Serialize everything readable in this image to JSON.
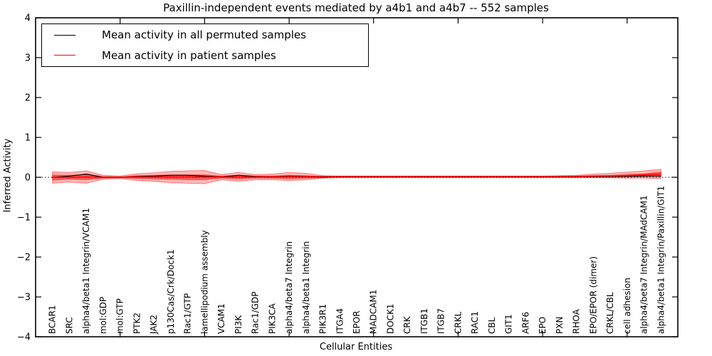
{
  "title": "Paxillin-independent events mediated by a4b1 and a4b7 -- 552 samples",
  "legend": {
    "entries": [
      {
        "label": "Mean activity in all permuted samples",
        "color": "#000000"
      },
      {
        "label": "Mean activity in patient samples",
        "color": "#ff0000"
      }
    ],
    "position": "upper left"
  },
  "colors": {
    "permuted_line": "#000000",
    "patient_line": "#ff0000",
    "band_fill": "#ff0000",
    "band_outer_opacity": 0.28,
    "band_inner_opacity": 0.5,
    "axis": "#000000",
    "zero_line": "#000000"
  },
  "chart_data": {
    "type": "line",
    "title": "Paxillin-independent events mediated by a4b1 and a4b7 -- 552 samples",
    "xlabel": "Cellular Entities",
    "ylabel": "Inferred Activity",
    "xlim": [
      0,
      38
    ],
    "ylim": [
      -4,
      4
    ],
    "grid": false,
    "legend_position": "upper left",
    "yticks": [
      {
        "value": 4,
        "label": "4"
      },
      {
        "value": 3,
        "label": "3"
      },
      {
        "value": 2,
        "label": "2"
      },
      {
        "value": 1,
        "label": "1"
      },
      {
        "value": 0,
        "label": "0"
      },
      {
        "value": -1,
        "label": "−1"
      },
      {
        "value": -2,
        "label": "−2"
      },
      {
        "value": -3,
        "label": "−3"
      },
      {
        "value": -4,
        "label": "−4"
      }
    ],
    "xticks_major": [
      5,
      10,
      15,
      20,
      25,
      30,
      35
    ],
    "zero_line": {
      "value": 0,
      "style": "dotted",
      "color": "#000000"
    },
    "categories": [
      "BCAR1",
      "SRC",
      "alpha4/beta1 Integrin/VCAM1",
      "mol:GDP",
      "mol:GTP",
      "PTK2",
      "JAK2",
      "p130Cas/Crk/Dock1",
      "Rac1/GTP",
      "lamellipodium assembly",
      "VCAM1",
      "PI3K",
      "Rac1/GDP",
      "PIK3CA",
      "alpha4/beta7 Integrin",
      "alpha4/beta1 Integrin",
      "PIK3R1",
      "ITGA4",
      "EPOR",
      "MADCAM1",
      "DOCK1",
      "CRK",
      "ITGB1",
      "ITGB7",
      "CRKL",
      "RAC1",
      "CBL",
      "GIT1",
      "ARF6",
      "EPO",
      "PXN",
      "RHOA",
      "EPO/EPOR (dimer)",
      "CRKL/CBL",
      "cell adhesion",
      "alpha4/beta7 Integrin/MAdCAM1",
      "alpha4/beta1 Integrin/Paxillin/GIT1"
    ],
    "series": [
      {
        "name": "Mean activity in all permuted samples",
        "color": "#000000",
        "values": [
          0.0,
          0.03,
          0.08,
          0.0,
          0.0,
          0.02,
          0.03,
          0.05,
          0.05,
          0.03,
          0.01,
          0.05,
          0.02,
          0.01,
          0.03,
          0.02,
          0.01,
          0.02,
          0.02,
          0.02,
          0.02,
          0.02,
          0.02,
          0.02,
          0.02,
          0.02,
          0.02,
          0.02,
          0.02,
          0.02,
          0.02,
          0.02,
          0.02,
          0.02,
          0.02,
          0.03,
          0.03
        ]
      },
      {
        "name": "Mean activity in patient samples",
        "color": "#ff0000",
        "values": [
          0.0,
          0.0,
          0.01,
          0.0,
          0.0,
          0.01,
          0.01,
          0.01,
          0.01,
          0.01,
          0.01,
          0.01,
          0.01,
          0.01,
          0.02,
          0.02,
          0.02,
          0.02,
          0.02,
          0.02,
          0.02,
          0.02,
          0.02,
          0.02,
          0.02,
          0.02,
          0.02,
          0.02,
          0.02,
          0.02,
          0.02,
          0.02,
          0.03,
          0.03,
          0.04,
          0.06,
          0.08
        ]
      }
    ],
    "bands": [
      {
        "name": "patient-std-outer",
        "upper": [
          0.14,
          0.12,
          0.16,
          0.05,
          0.03,
          0.09,
          0.11,
          0.15,
          0.16,
          0.17,
          0.07,
          0.12,
          0.07,
          0.08,
          0.12,
          0.1,
          0.04,
          0.03,
          0.03,
          0.03,
          0.03,
          0.03,
          0.03,
          0.03,
          0.03,
          0.03,
          0.03,
          0.03,
          0.03,
          0.03,
          0.04,
          0.05,
          0.08,
          0.1,
          0.13,
          0.16,
          0.2
        ],
        "lower": [
          -0.15,
          -0.12,
          -0.15,
          -0.05,
          -0.03,
          -0.08,
          -0.1,
          -0.14,
          -0.15,
          -0.16,
          -0.06,
          -0.1,
          -0.06,
          -0.06,
          -0.08,
          -0.06,
          -0.02,
          -0.01,
          -0.01,
          -0.01,
          -0.01,
          -0.01,
          -0.01,
          -0.01,
          -0.01,
          -0.01,
          -0.01,
          -0.01,
          -0.01,
          -0.01,
          -0.01,
          -0.01,
          -0.01,
          -0.01,
          -0.02,
          -0.02,
          -0.03
        ]
      },
      {
        "name": "patient-std-inner",
        "upper": [
          0.06,
          0.05,
          0.07,
          0.02,
          0.01,
          0.04,
          0.05,
          0.06,
          0.06,
          0.06,
          0.03,
          0.05,
          0.03,
          0.03,
          0.05,
          0.04,
          0.02,
          0.02,
          0.02,
          0.02,
          0.02,
          0.02,
          0.02,
          0.02,
          0.02,
          0.02,
          0.02,
          0.02,
          0.02,
          0.02,
          0.02,
          0.03,
          0.04,
          0.05,
          0.07,
          0.09,
          0.13
        ],
        "lower": [
          -0.07,
          -0.05,
          -0.06,
          -0.02,
          -0.01,
          -0.03,
          -0.04,
          -0.05,
          -0.06,
          -0.06,
          -0.02,
          -0.04,
          -0.02,
          -0.02,
          -0.03,
          -0.02,
          -0.01,
          0.0,
          0.0,
          0.0,
          0.0,
          0.0,
          0.0,
          0.0,
          0.0,
          0.0,
          0.0,
          0.0,
          0.0,
          0.0,
          0.0,
          0.0,
          0.01,
          0.01,
          0.02,
          0.02,
          0.03
        ]
      }
    ]
  }
}
